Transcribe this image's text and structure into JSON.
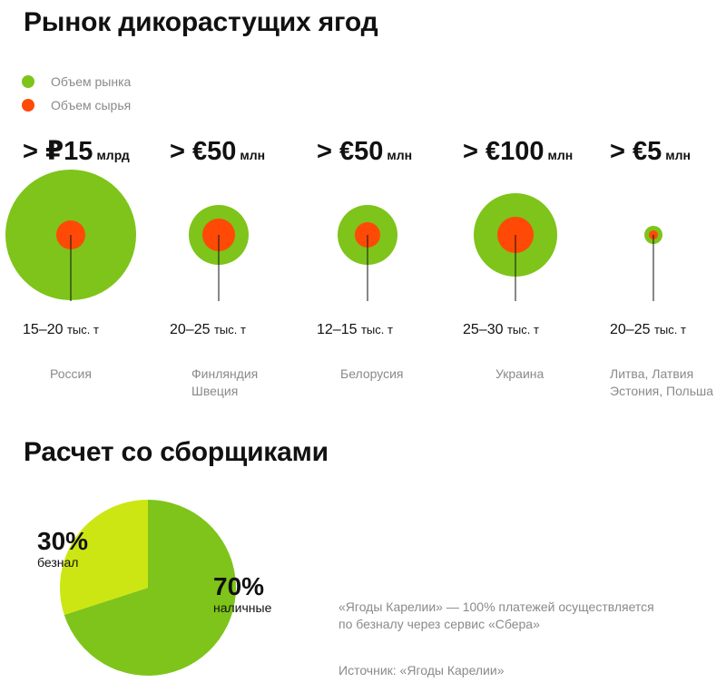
{
  "colors": {
    "market": "#7ec41a",
    "raw": "#ff4a07",
    "pie_cash": "#7ec41a",
    "pie_card": "#cce614",
    "line": "#111111"
  },
  "chart_data": [
    {
      "type": "bubble",
      "title": "Рынок дикорастущих ягод",
      "legend": [
        {
          "name": "Объем рынка",
          "color": "#7ec41a"
        },
        {
          "name": "Объем сырья",
          "color": "#ff4a07"
        }
      ],
      "items": [
        {
          "market_label": "> ₽15",
          "market_unit": "млрд",
          "raw_value": "15–20",
          "raw_unit": "тыс. т",
          "country_lines": [
            "Россия"
          ],
          "market_size": 72,
          "raw_size": 16
        },
        {
          "market_label": "> €50",
          "market_unit": "млн",
          "raw_value": "20–25",
          "raw_unit": "тыс. т",
          "country_lines": [
            "Финляндия",
            "Швеция"
          ],
          "market_size": 33,
          "raw_size": 18
        },
        {
          "market_label": "> €50",
          "market_unit": "млн",
          "raw_value": "12–15",
          "raw_unit": "тыс. т",
          "country_lines": [
            "Белорусия"
          ],
          "market_size": 33,
          "raw_size": 14
        },
        {
          "market_label": "> €100",
          "market_unit": "млн",
          "raw_value": "25–30",
          "raw_unit": "тыс. т",
          "country_lines": [
            "Украина"
          ],
          "market_size": 46,
          "raw_size": 20
        },
        {
          "market_label": "> €5",
          "market_unit": "млн",
          "raw_value": "20–25",
          "raw_unit": "тыс. т",
          "country_lines": [
            "Литва, Латвия",
            "Эстония, Польша"
          ],
          "market_size": 10,
          "raw_size": 5
        }
      ]
    },
    {
      "type": "pie",
      "title": "Расчет со сборщиками",
      "slices": [
        {
          "name": "безнал",
          "label": "30%",
          "value": 30,
          "color": "#cce614"
        },
        {
          "name": "наличные",
          "label": "70%",
          "value": 70,
          "color": "#7ec41a"
        }
      ]
    }
  ],
  "note_lines": [
    "«Ягоды Карелии» — 100% платежей осуществляется",
    "по безналу через сервис «Сбера»"
  ],
  "source": "Источник: «Ягоды Карелии»"
}
